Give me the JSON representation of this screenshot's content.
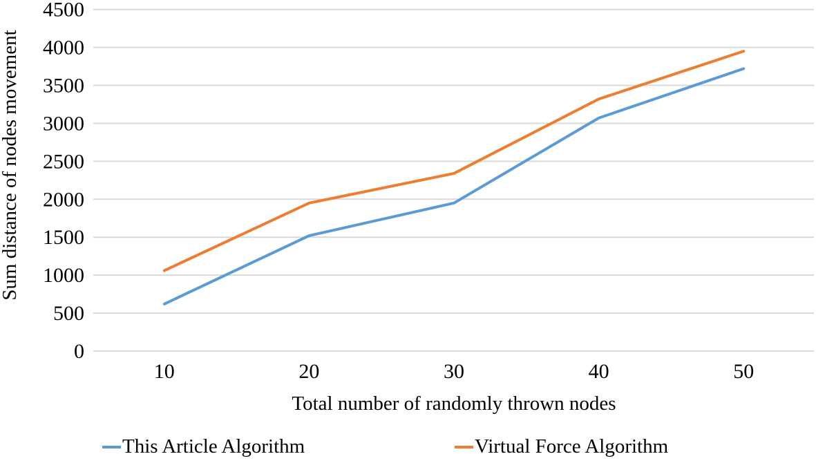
{
  "chart_data": {
    "type": "line",
    "title": "",
    "xlabel": "Total number of randomly thrown nodes",
    "ylabel": "Sum distance of nodes movement",
    "categories": [
      10,
      20,
      30,
      40,
      50
    ],
    "series": [
      {
        "name": "This Article Algorithm",
        "color": "#5B9BD5",
        "values": [
          620,
          1520,
          1950,
          3070,
          3720
        ]
      },
      {
        "name": "Virtual Force Algorithm",
        "color": "#ED7D31",
        "values": [
          1060,
          1950,
          2340,
          3320,
          3950
        ]
      }
    ],
    "ylim": [
      0,
      4500
    ],
    "ytick_step": 500,
    "yticks": [
      "0",
      "500",
      "1000",
      "1500",
      "2000",
      "2500",
      "3000",
      "3500",
      "4000",
      "4500"
    ],
    "grid": true,
    "gridline_color": "#D9D9D9",
    "legend_position": "bottom",
    "text_color": "#000000"
  }
}
